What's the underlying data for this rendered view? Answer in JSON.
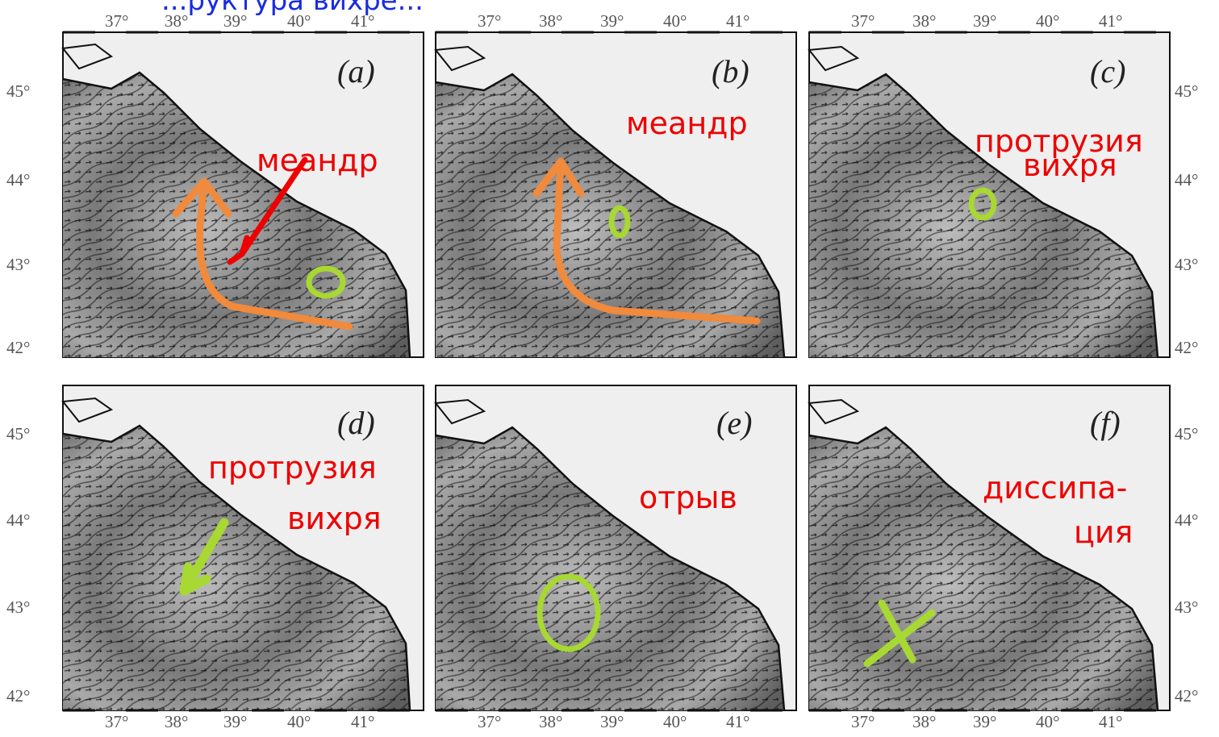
{
  "header_text": "...руктура вихре...",
  "colors": {
    "annotation": "#ee0000",
    "header": "#1a2be0",
    "orange_arrow": "#f08a3c",
    "green_mark": "#a8d832"
  },
  "lon_ticks": [
    "37°",
    "38°",
    "39°",
    "40°",
    "41°"
  ],
  "lat_ticks": [
    "45°",
    "44°",
    "43°",
    "42°"
  ],
  "panels": [
    {
      "id": "a",
      "label": "(a)",
      "annotation_lines": [
        "меандр"
      ],
      "marks": [
        "orange-arrow",
        "red-arrow",
        "green-ellipse"
      ]
    },
    {
      "id": "b",
      "label": "(b)",
      "annotation_lines": [
        "меандр"
      ],
      "marks": [
        "orange-arrow",
        "green-ellipse"
      ]
    },
    {
      "id": "c",
      "label": "(c)",
      "annotation_lines": [
        "протрузия",
        "вихря"
      ],
      "marks": [
        "green-ellipse"
      ]
    },
    {
      "id": "d",
      "label": "(d)",
      "annotation_lines": [
        "протрузия",
        "вихря"
      ],
      "marks": [
        "green-arrow"
      ]
    },
    {
      "id": "e",
      "label": "(e)",
      "annotation_lines": [
        "отрыв"
      ],
      "marks": [
        "green-ellipse"
      ]
    },
    {
      "id": "f",
      "label": "(f)",
      "annotation_lines": [
        "диссипа-",
        "ция"
      ],
      "marks": [
        "green-x"
      ]
    }
  ]
}
